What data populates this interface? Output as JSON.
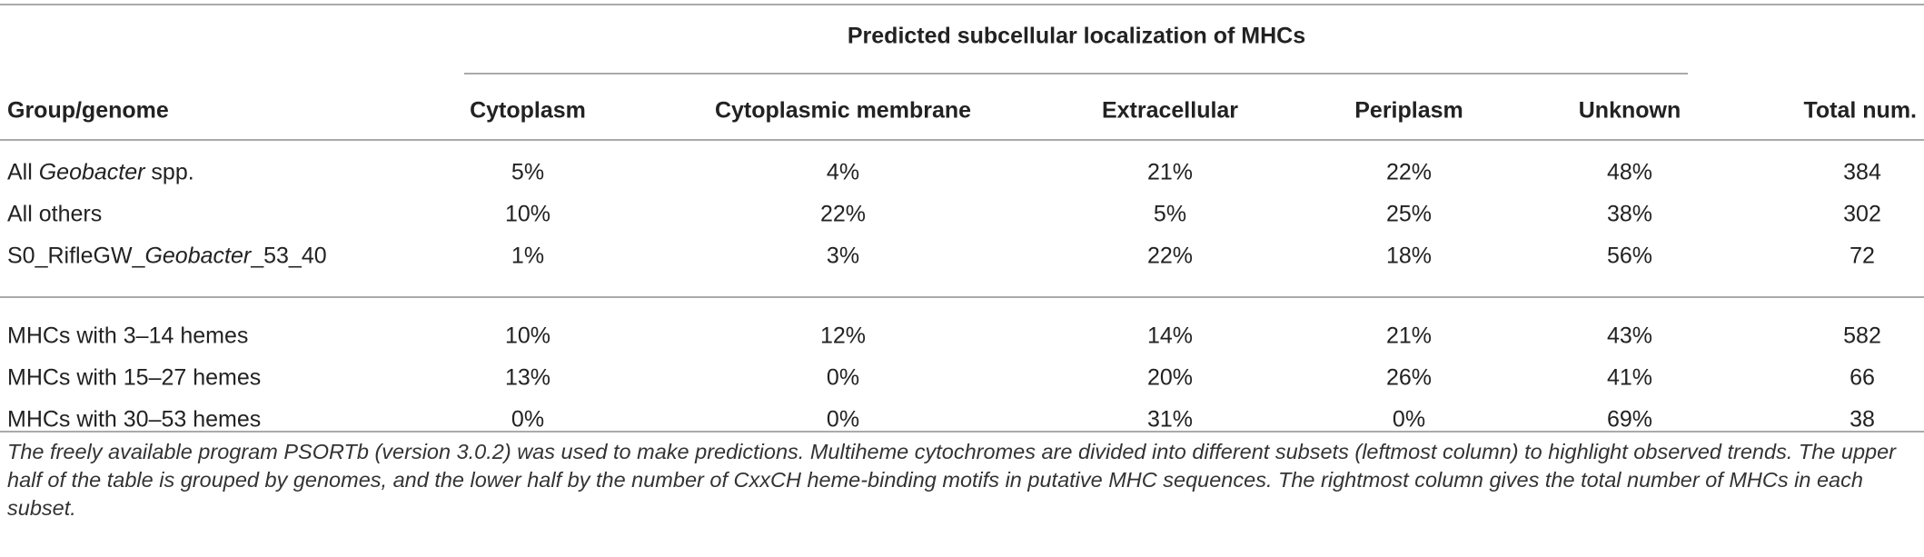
{
  "table": {
    "group_header": "Predicted subcellular localization of MHCs",
    "columns": [
      "Group/genome",
      "Cytoplasm",
      "Cytoplasmic membrane",
      "Extracellular",
      "Periplasm",
      "Unknown",
      "Total num."
    ],
    "sections": [
      {
        "rows": [
          {
            "label": [
              {
                "text": "All "
              },
              {
                "text": "Geobacter",
                "italic": true
              },
              {
                "text": " spp."
              }
            ],
            "cells": [
              "5%",
              "4%",
              "21%",
              "22%",
              "48%",
              "384"
            ]
          },
          {
            "label": [
              {
                "text": "All others"
              }
            ],
            "cells": [
              "10%",
              "22%",
              "5%",
              "25%",
              "38%",
              "302"
            ]
          },
          {
            "label": [
              {
                "text": "S0_RifleGW_"
              },
              {
                "text": "Geobacter",
                "italic": true
              },
              {
                "text": "_53_40"
              }
            ],
            "cells": [
              "1%",
              "3%",
              "22%",
              "18%",
              "56%",
              "72"
            ]
          }
        ]
      },
      {
        "rows": [
          {
            "label": [
              {
                "text": "MHCs with 3–14 hemes"
              }
            ],
            "cells": [
              "10%",
              "12%",
              "14%",
              "21%",
              "43%",
              "582"
            ]
          },
          {
            "label": [
              {
                "text": "MHCs with 15–27 hemes"
              }
            ],
            "cells": [
              "13%",
              "0%",
              "20%",
              "26%",
              "41%",
              "66"
            ]
          },
          {
            "label": [
              {
                "text": "MHCs with 30–53 hemes"
              }
            ],
            "cells": [
              "0%",
              "0%",
              "31%",
              "0%",
              "69%",
              "38"
            ]
          }
        ]
      }
    ]
  },
  "footnote": "The freely available program PSORTb (version 3.0.2) was used to make predictions. Multiheme cytochromes are divided into different subsets (leftmost column) to highlight observed trends. The upper half of the table is grouped by genomes, and the lower half by the number of CxxCH heme-binding motifs in putative MHC sequences. The rightmost column gives the total number of MHCs in each subset."
}
